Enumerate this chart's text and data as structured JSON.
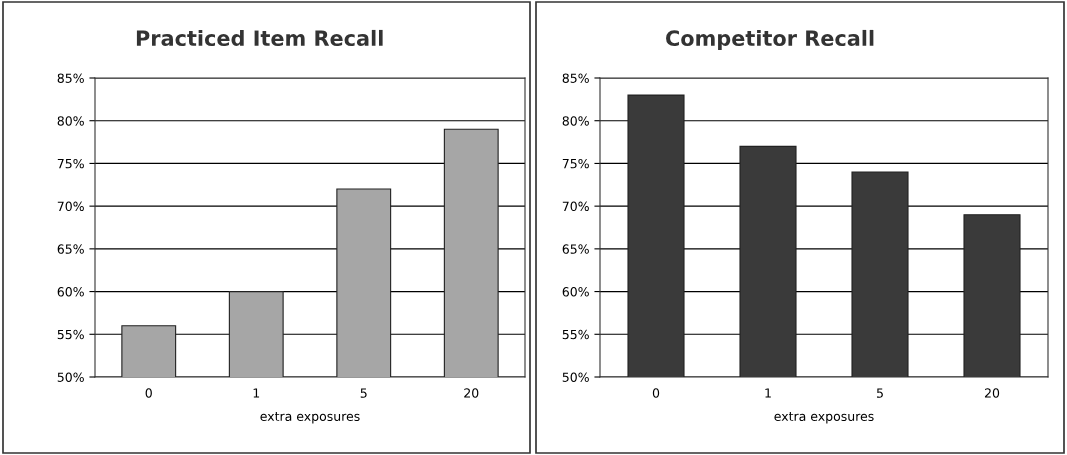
{
  "chart_data": [
    {
      "type": "bar",
      "title": "Practiced Item Recall",
      "xlabel": "extra exposures",
      "categories": [
        "0",
        "1",
        "5",
        "20"
      ],
      "values": [
        56,
        60,
        72,
        79
      ],
      "color": "#a6a6a6",
      "ylim": [
        50,
        85
      ],
      "yticks": [
        {
          "value": 50,
          "label": "50%"
        },
        {
          "value": 55,
          "label": "55%"
        },
        {
          "value": 60,
          "label": "60%"
        },
        {
          "value": 65,
          "label": "65%"
        },
        {
          "value": 70,
          "label": "70%"
        },
        {
          "value": 75,
          "label": "75%"
        },
        {
          "value": 80,
          "label": "80%"
        },
        {
          "value": 85,
          "label": "85%"
        }
      ],
      "grid": "y"
    },
    {
      "type": "bar",
      "title": "Competitor Recall",
      "xlabel": "extra exposures",
      "categories": [
        "0",
        "1",
        "5",
        "20"
      ],
      "values": [
        83,
        77,
        74,
        69
      ],
      "color": "#3a3a3a",
      "ylim": [
        50,
        85
      ],
      "yticks": [
        {
          "value": 50,
          "label": "50%"
        },
        {
          "value": 55,
          "label": "55%"
        },
        {
          "value": 60,
          "label": "60%"
        },
        {
          "value": 65,
          "label": "65%"
        },
        {
          "value": 70,
          "label": "70%"
        },
        {
          "value": 75,
          "label": "75%"
        },
        {
          "value": 80,
          "label": "80%"
        },
        {
          "value": 85,
          "label": "85%"
        }
      ],
      "grid": "y"
    }
  ]
}
